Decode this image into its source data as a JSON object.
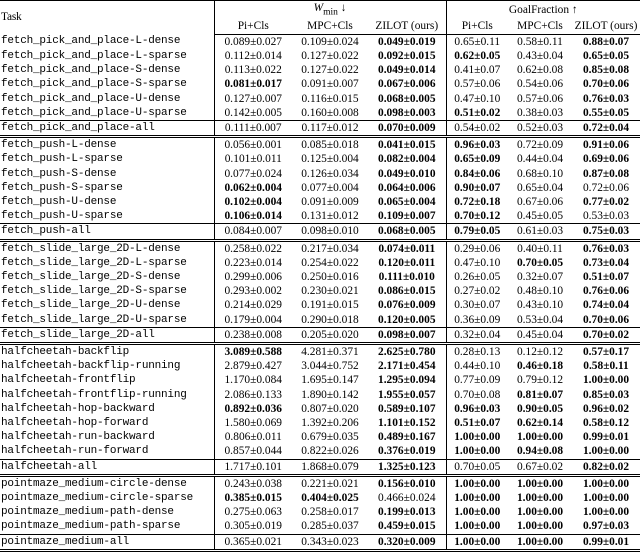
{
  "header": {
    "task": "Task",
    "groups": [
      {
        "symbol": "W",
        "sub": "min",
        "arrow": "↓"
      },
      {
        "name": "GoalFraction",
        "arrow": "↑"
      }
    ],
    "columns": [
      "Pi+Cls",
      "MPC+Cls",
      "ZILOT (ours)",
      "Pi+Cls",
      "MPC+Cls",
      "ZILOT (ours)"
    ]
  },
  "groups": [
    {
      "rows": [
        {
          "task": "fetch_pick_and_place-L-dense",
          "values": [
            "0.089±0.027",
            "0.109±0.024",
            "0.049±0.019",
            "0.65±0.11",
            "0.58±0.11",
            "0.88±0.07"
          ],
          "bold": [
            false,
            false,
            true,
            false,
            false,
            true
          ]
        },
        {
          "task": "fetch_pick_and_place-L-sparse",
          "values": [
            "0.112±0.014",
            "0.127±0.022",
            "0.092±0.015",
            "0.62±0.05",
            "0.43±0.04",
            "0.65±0.05"
          ],
          "bold": [
            false,
            false,
            true,
            true,
            false,
            true
          ]
        },
        {
          "task": "fetch_pick_and_place-S-dense",
          "values": [
            "0.113±0.022",
            "0.127±0.022",
            "0.049±0.014",
            "0.41±0.07",
            "0.62±0.08",
            "0.85±0.08"
          ],
          "bold": [
            false,
            false,
            true,
            false,
            false,
            true
          ]
        },
        {
          "task": "fetch_pick_and_place-S-sparse",
          "values": [
            "0.081±0.017",
            "0.091±0.007",
            "0.067±0.006",
            "0.57±0.06",
            "0.54±0.06",
            "0.70±0.06"
          ],
          "bold": [
            true,
            false,
            true,
            false,
            false,
            true
          ]
        },
        {
          "task": "fetch_pick_and_place-U-dense",
          "values": [
            "0.127±0.007",
            "0.116±0.015",
            "0.068±0.005",
            "0.47±0.10",
            "0.57±0.06",
            "0.76±0.03"
          ],
          "bold": [
            false,
            false,
            true,
            false,
            false,
            true
          ]
        },
        {
          "task": "fetch_pick_and_place-U-sparse",
          "values": [
            "0.142±0.005",
            "0.160±0.008",
            "0.098±0.003",
            "0.51±0.02",
            "0.38±0.03",
            "0.55±0.05"
          ],
          "bold": [
            false,
            false,
            true,
            true,
            false,
            true
          ]
        }
      ],
      "summary": {
        "task": "fetch_pick_and_place-all",
        "values": [
          "0.111±0.007",
          "0.117±0.012",
          "0.070±0.009",
          "0.54±0.02",
          "0.52±0.03",
          "0.72±0.04"
        ],
        "bold": [
          false,
          false,
          true,
          false,
          false,
          true
        ]
      }
    },
    {
      "rows": [
        {
          "task": "fetch_push-L-dense",
          "values": [
            "0.056±0.001",
            "0.085±0.018",
            "0.041±0.015",
            "0.96±0.03",
            "0.72±0.09",
            "0.91±0.06"
          ],
          "bold": [
            false,
            false,
            true,
            true,
            false,
            true
          ]
        },
        {
          "task": "fetch_push-L-sparse",
          "values": [
            "0.101±0.011",
            "0.125±0.004",
            "0.082±0.004",
            "0.65±0.09",
            "0.44±0.04",
            "0.69±0.06"
          ],
          "bold": [
            false,
            false,
            true,
            true,
            false,
            true
          ]
        },
        {
          "task": "fetch_push-S-dense",
          "values": [
            "0.077±0.024",
            "0.126±0.034",
            "0.049±0.010",
            "0.84±0.06",
            "0.68±0.10",
            "0.87±0.08"
          ],
          "bold": [
            false,
            false,
            true,
            true,
            false,
            true
          ]
        },
        {
          "task": "fetch_push-S-sparse",
          "values": [
            "0.062±0.004",
            "0.077±0.004",
            "0.064±0.006",
            "0.90±0.07",
            "0.65±0.04",
            "0.72±0.06"
          ],
          "bold": [
            true,
            false,
            true,
            true,
            false,
            false
          ]
        },
        {
          "task": "fetch_push-U-dense",
          "values": [
            "0.102±0.004",
            "0.091±0.009",
            "0.065±0.004",
            "0.72±0.18",
            "0.67±0.06",
            "0.77±0.02"
          ],
          "bold": [
            true,
            false,
            true,
            true,
            false,
            true
          ]
        },
        {
          "task": "fetch_push-U-sparse",
          "values": [
            "0.106±0.014",
            "0.131±0.012",
            "0.109±0.007",
            "0.70±0.12",
            "0.45±0.05",
            "0.53±0.03"
          ],
          "bold": [
            true,
            false,
            true,
            true,
            false,
            false
          ]
        }
      ],
      "summary": {
        "task": "fetch_push-all",
        "values": [
          "0.084±0.007",
          "0.098±0.010",
          "0.068±0.005",
          "0.79±0.05",
          "0.61±0.03",
          "0.75±0.03"
        ],
        "bold": [
          false,
          false,
          true,
          true,
          false,
          true
        ]
      }
    },
    {
      "rows": [
        {
          "task": "fetch_slide_large_2D-L-dense",
          "values": [
            "0.258±0.022",
            "0.217±0.034",
            "0.074±0.011",
            "0.29±0.06",
            "0.40±0.11",
            "0.76±0.03"
          ],
          "bold": [
            false,
            false,
            true,
            false,
            false,
            true
          ]
        },
        {
          "task": "fetch_slide_large_2D-L-sparse",
          "values": [
            "0.223±0.014",
            "0.254±0.022",
            "0.120±0.011",
            "0.47±0.10",
            "0.70±0.05",
            "0.73±0.04"
          ],
          "bold": [
            false,
            false,
            true,
            false,
            true,
            true
          ]
        },
        {
          "task": "fetch_slide_large_2D-S-dense",
          "values": [
            "0.299±0.006",
            "0.250±0.016",
            "0.111±0.010",
            "0.26±0.05",
            "0.32±0.07",
            "0.51±0.07"
          ],
          "bold": [
            false,
            false,
            true,
            false,
            false,
            true
          ]
        },
        {
          "task": "fetch_slide_large_2D-S-sparse",
          "values": [
            "0.293±0.002",
            "0.230±0.021",
            "0.086±0.015",
            "0.27±0.02",
            "0.48±0.10",
            "0.76±0.06"
          ],
          "bold": [
            false,
            false,
            true,
            false,
            false,
            true
          ]
        },
        {
          "task": "fetch_slide_large_2D-U-dense",
          "values": [
            "0.214±0.029",
            "0.191±0.015",
            "0.076±0.009",
            "0.30±0.07",
            "0.43±0.10",
            "0.74±0.04"
          ],
          "bold": [
            false,
            false,
            true,
            false,
            false,
            true
          ]
        },
        {
          "task": "fetch_slide_large_2D-U-sparse",
          "values": [
            "0.179±0.004",
            "0.290±0.018",
            "0.120±0.005",
            "0.36±0.09",
            "0.53±0.04",
            "0.70±0.06"
          ],
          "bold": [
            false,
            false,
            true,
            false,
            false,
            true
          ]
        }
      ],
      "summary": {
        "task": "fetch_slide_large_2D-all",
        "values": [
          "0.238±0.008",
          "0.205±0.020",
          "0.098±0.007",
          "0.32±0.04",
          "0.45±0.04",
          "0.70±0.02"
        ],
        "bold": [
          false,
          false,
          true,
          false,
          false,
          true
        ]
      }
    },
    {
      "rows": [
        {
          "task": "halfcheetah-backflip",
          "values": [
            "3.089±0.588",
            "4.281±0.371",
            "2.625±0.780",
            "0.28±0.13",
            "0.12±0.12",
            "0.57±0.17"
          ],
          "bold": [
            true,
            false,
            true,
            false,
            false,
            true
          ]
        },
        {
          "task": "halfcheetah-backflip-running",
          "values": [
            "2.879±0.427",
            "3.044±0.752",
            "2.171±0.454",
            "0.44±0.10",
            "0.46±0.18",
            "0.58±0.11"
          ],
          "bold": [
            false,
            false,
            true,
            false,
            true,
            true
          ]
        },
        {
          "task": "halfcheetah-frontflip",
          "values": [
            "1.170±0.084",
            "1.695±0.147",
            "1.295±0.094",
            "0.77±0.09",
            "0.79±0.12",
            "1.00±0.00"
          ],
          "bold": [
            false,
            false,
            true,
            false,
            false,
            true
          ]
        },
        {
          "task": "halfcheetah-frontflip-running",
          "values": [
            "2.086±0.133",
            "1.890±0.142",
            "1.955±0.057",
            "0.70±0.08",
            "0.81±0.07",
            "0.85±0.03"
          ],
          "bold": [
            false,
            false,
            true,
            false,
            true,
            true
          ]
        },
        {
          "task": "halfcheetah-hop-backward",
          "values": [
            "0.892±0.036",
            "0.807±0.020",
            "0.589±0.107",
            "0.96±0.03",
            "0.90±0.05",
            "0.96±0.02"
          ],
          "bold": [
            true,
            false,
            true,
            true,
            true,
            true
          ]
        },
        {
          "task": "halfcheetah-hop-forward",
          "values": [
            "1.580±0.069",
            "1.392±0.206",
            "1.101±0.152",
            "0.51±0.07",
            "0.62±0.14",
            "0.58±0.12"
          ],
          "bold": [
            false,
            false,
            true,
            true,
            true,
            true
          ]
        },
        {
          "task": "halfcheetah-run-backward",
          "values": [
            "0.806±0.011",
            "0.679±0.035",
            "0.489±0.167",
            "1.00±0.00",
            "1.00±0.00",
            "0.99±0.01"
          ],
          "bold": [
            false,
            false,
            true,
            true,
            true,
            true
          ]
        },
        {
          "task": "halfcheetah-run-forward",
          "values": [
            "0.857±0.044",
            "0.822±0.026",
            "0.376±0.019",
            "1.00±0.00",
            "0.94±0.08",
            "1.00±0.00"
          ],
          "bold": [
            false,
            false,
            true,
            true,
            true,
            true
          ]
        }
      ],
      "summary": {
        "task": "halfcheetah-all",
        "values": [
          "1.717±0.101",
          "1.868±0.079",
          "1.325±0.123",
          "0.70±0.05",
          "0.67±0.02",
          "0.82±0.02"
        ],
        "bold": [
          false,
          false,
          true,
          false,
          false,
          true
        ]
      }
    },
    {
      "rows": [
        {
          "task": "pointmaze_medium-circle-dense",
          "values": [
            "0.243±0.038",
            "0.221±0.021",
            "0.156±0.010",
            "1.00±0.00",
            "1.00±0.00",
            "1.00±0.00"
          ],
          "bold": [
            false,
            false,
            true,
            true,
            true,
            true
          ]
        },
        {
          "task": "pointmaze_medium-circle-sparse",
          "values": [
            "0.385±0.015",
            "0.404±0.025",
            "0.466±0.024",
            "1.00±0.00",
            "1.00±0.00",
            "1.00±0.00"
          ],
          "bold": [
            true,
            true,
            false,
            true,
            true,
            true
          ]
        },
        {
          "task": "pointmaze_medium-path-dense",
          "values": [
            "0.275±0.063",
            "0.258±0.017",
            "0.199±0.013",
            "1.00±0.00",
            "1.00±0.00",
            "1.00±0.00"
          ],
          "bold": [
            false,
            false,
            true,
            true,
            true,
            true
          ]
        },
        {
          "task": "pointmaze_medium-path-sparse",
          "values": [
            "0.305±0.019",
            "0.285±0.037",
            "0.459±0.015",
            "1.00±0.00",
            "1.00±0.00",
            "0.97±0.03"
          ],
          "bold": [
            false,
            false,
            true,
            true,
            true,
            true
          ]
        }
      ],
      "summary": {
        "task": "pointmaze_medium-all",
        "values": [
          "0.365±0.021",
          "0.343±0.023",
          "0.320±0.009",
          "1.00±0.00",
          "1.00±0.00",
          "0.99±0.01"
        ],
        "bold": [
          false,
          false,
          true,
          true,
          true,
          true
        ]
      }
    }
  ]
}
